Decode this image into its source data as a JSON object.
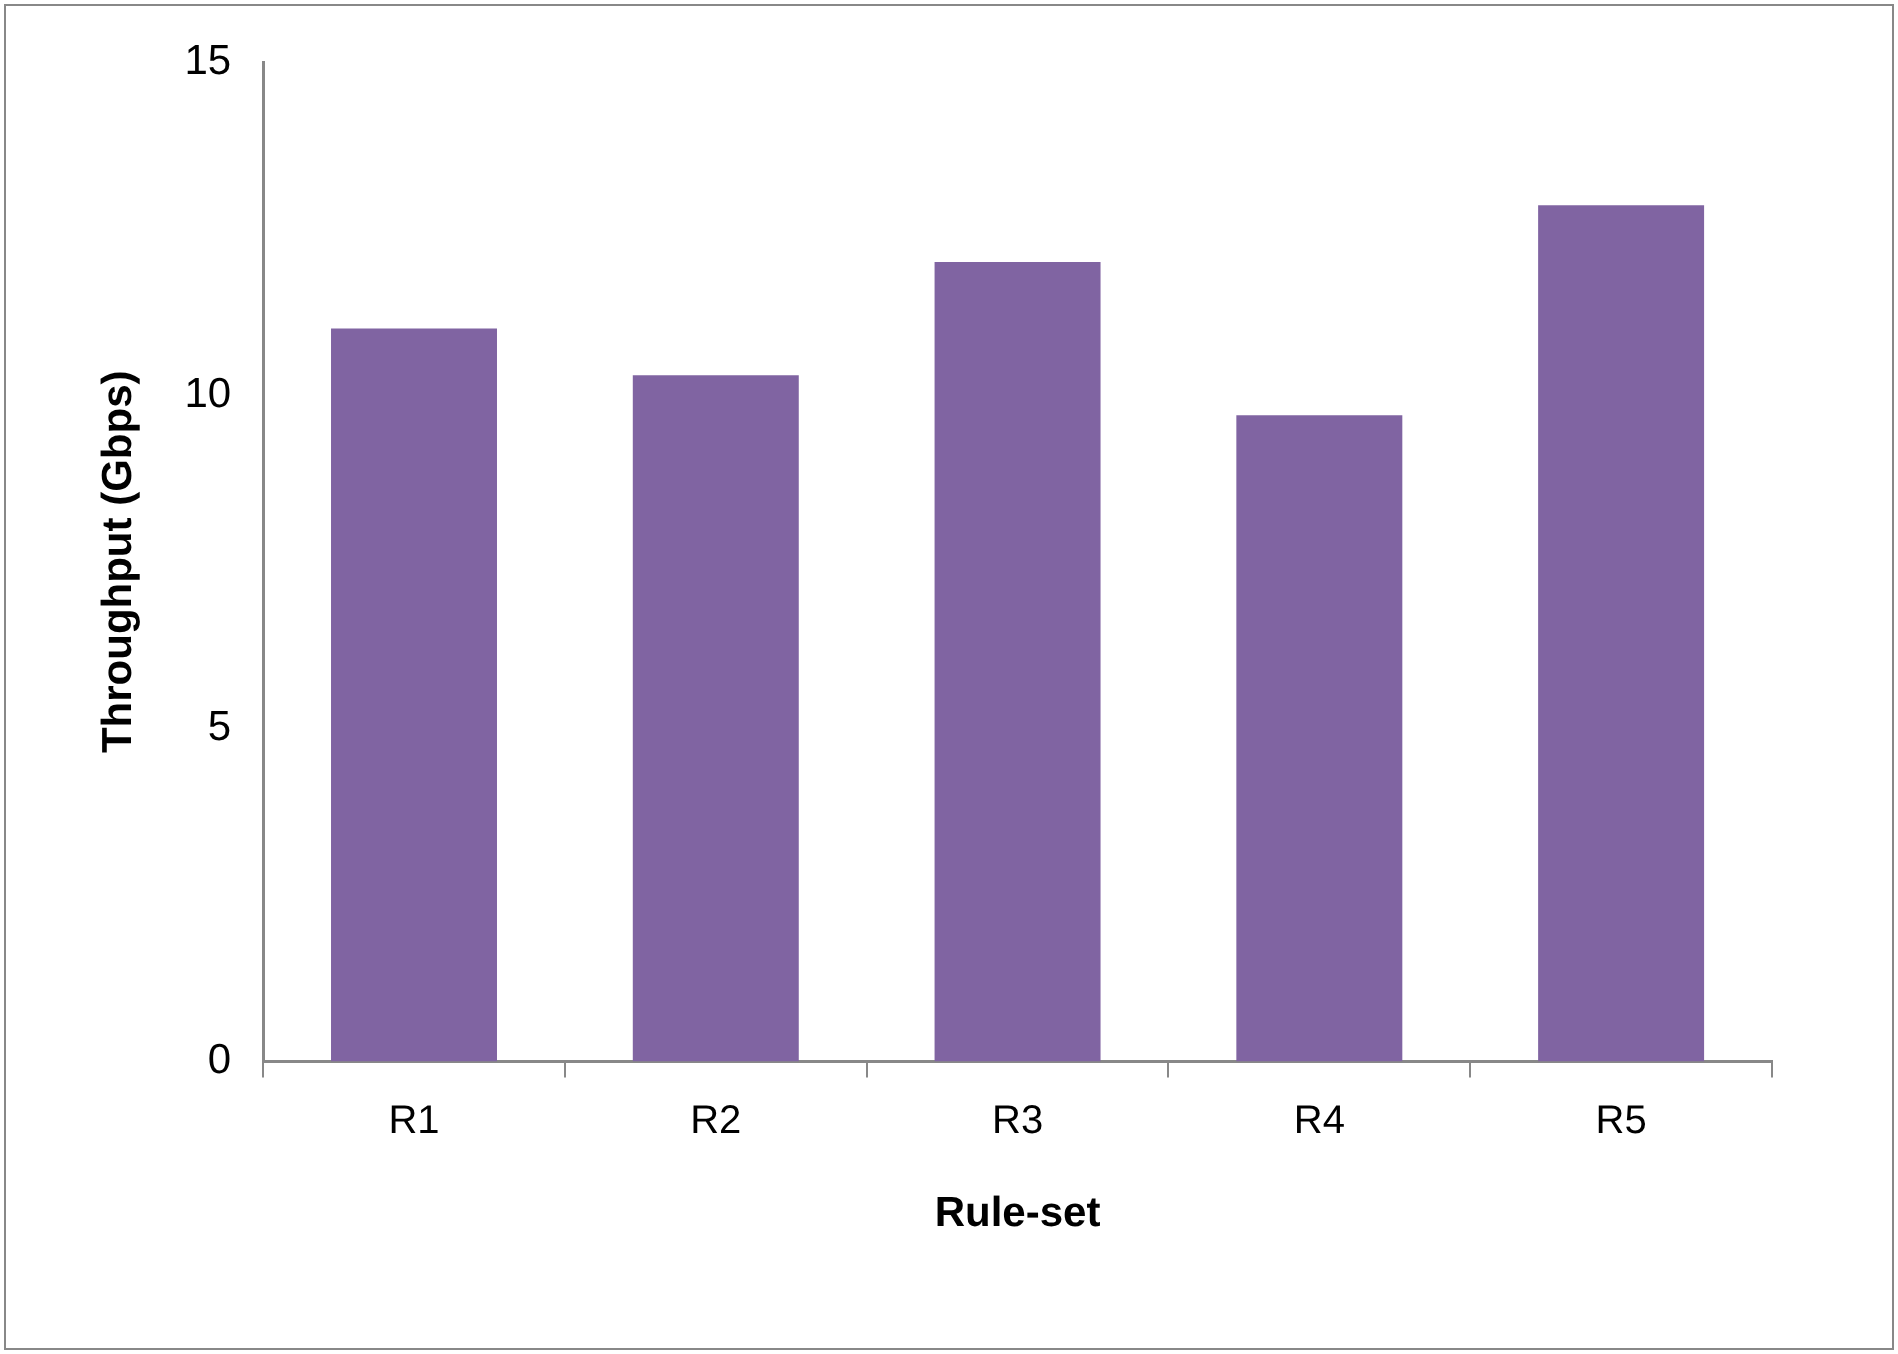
{
  "chart_data": {
    "type": "bar",
    "xlabel": "Rule-set",
    "ylabel": "Throughput (Gbps)",
    "categories": [
      "R1",
      "R2",
      "R3",
      "R4",
      "R5"
    ],
    "values": [
      11.0,
      10.3,
      12.0,
      9.7,
      12.85
    ],
    "color": "#8064a2",
    "ylim": [
      0,
      15
    ],
    "yticks": [
      0,
      5,
      10,
      15
    ],
    "grid": false,
    "legend": false
  }
}
